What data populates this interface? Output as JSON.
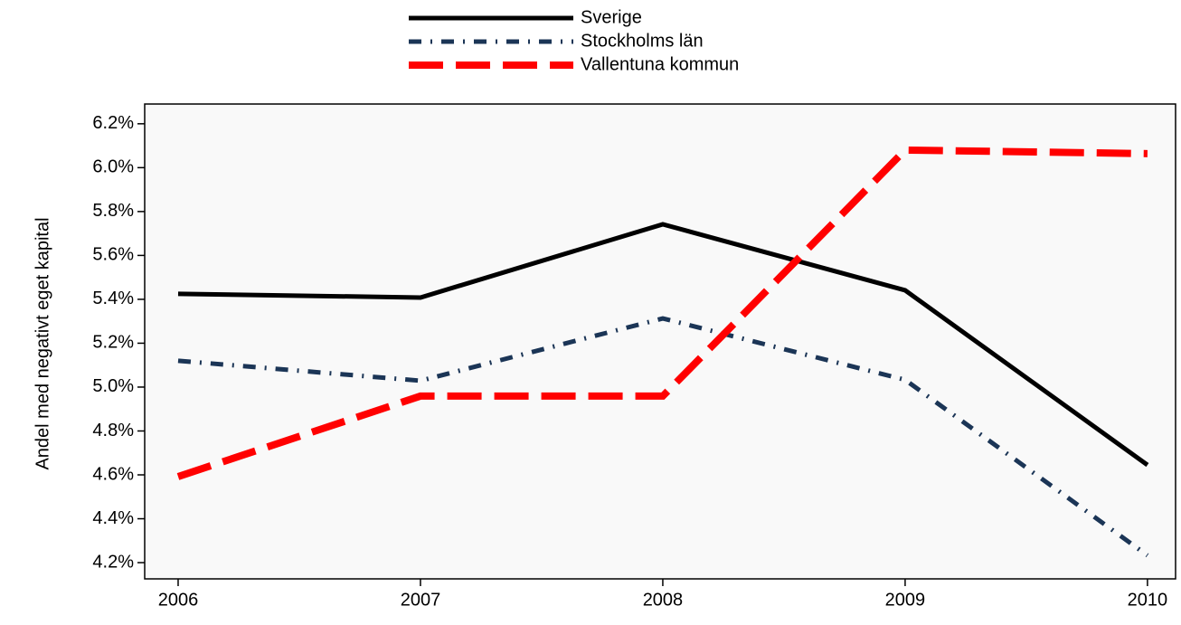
{
  "chart_data": {
    "type": "line",
    "y_label": "Andel med negativt eget kapital",
    "x": [
      2006,
      2007,
      2008,
      2009,
      2010
    ],
    "xlim": [
      2005.862,
      2010.116
    ],
    "xticks": [
      2006,
      2007,
      2008,
      2009,
      2010
    ],
    "ylim": [
      4.126,
      6.29
    ],
    "yticks": [
      {
        "value": 4.2,
        "label": "4.2%"
      },
      {
        "value": 4.4,
        "label": "4.4%"
      },
      {
        "value": 4.6,
        "label": "4.6%"
      },
      {
        "value": 4.8,
        "label": "4.8%"
      },
      {
        "value": 5.0,
        "label": "5.0%"
      },
      {
        "value": 5.2,
        "label": "5.2%"
      },
      {
        "value": 5.4,
        "label": "5.4%"
      },
      {
        "value": 5.6,
        "label": "5.6%"
      },
      {
        "value": 5.8,
        "label": "5.8%"
      },
      {
        "value": 6.0,
        "label": "6.0%"
      },
      {
        "value": 6.2,
        "label": "6.2%"
      }
    ],
    "series": [
      {
        "name": "Sverige",
        "color": "#000000",
        "dash": "solid",
        "values": [
          5.425,
          5.408,
          5.742,
          5.441,
          4.645
        ]
      },
      {
        "name": "Stockholms län",
        "color": "#1b3556",
        "dash": "dashdot",
        "values": [
          5.12,
          5.029,
          5.313,
          5.033,
          4.233
        ]
      },
      {
        "name": "Vallentuna kommun",
        "color": "#ff0000",
        "dash": "longdash",
        "values": [
          4.592,
          4.959,
          4.959,
          6.08,
          6.064
        ]
      }
    ]
  }
}
